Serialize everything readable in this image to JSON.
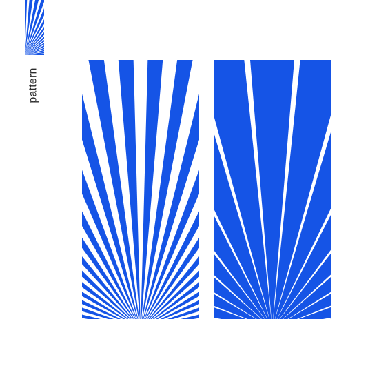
{
  "brand": {
    "word": "pattern",
    "icon": "sunburst-icon"
  },
  "colors": {
    "accent": "#1554e6",
    "background": "#ffffff",
    "text": "#2b2b2b"
  },
  "patterns": [
    {
      "name": "rays-on-white",
      "style": "blue rays on white background"
    },
    {
      "name": "rays-on-blue",
      "style": "white rays on blue background"
    }
  ]
}
